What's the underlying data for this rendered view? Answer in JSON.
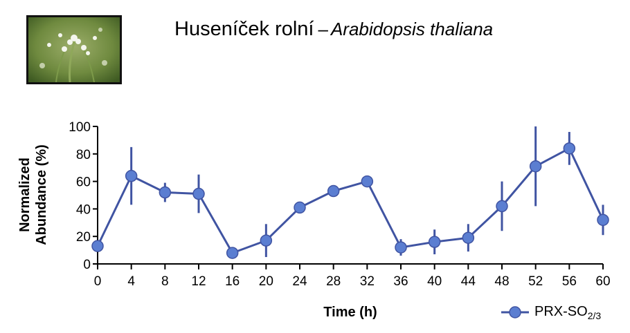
{
  "header": {
    "title_czech": "Huseníček rolní",
    "title_separator": "–",
    "title_latin": "Arabidopsis thaliana"
  },
  "photo": {
    "icon": "arabidopsis-flower-photo"
  },
  "colors": {
    "series": "#4054a2",
    "marker": "#5b7ed1"
  },
  "chart_data": {
    "type": "line",
    "xlabel": "Time (h)",
    "ylabel_line1": "Normalized",
    "ylabel_line2": "Abundance (%)",
    "xlim": [
      0,
      60
    ],
    "ylim": [
      0,
      100
    ],
    "xticks": [
      0,
      4,
      8,
      12,
      16,
      20,
      24,
      28,
      32,
      36,
      40,
      44,
      48,
      52,
      56,
      60
    ],
    "yticks": [
      0,
      20,
      40,
      60,
      80,
      100
    ],
    "grid": false,
    "legend_position": "bottom-right",
    "series": [
      {
        "name_main": "PRX-SO",
        "name_sub": "2/3",
        "x": [
          0,
          4,
          8,
          12,
          16,
          20,
          24,
          28,
          32,
          36,
          40,
          44,
          48,
          52,
          56,
          60
        ],
        "y": [
          13,
          64,
          52,
          51,
          8,
          17,
          41,
          53,
          60,
          12,
          16,
          19,
          42,
          71,
          84,
          32
        ],
        "error": [
          0,
          21,
          7,
          14,
          0,
          12,
          0,
          0,
          0,
          6,
          9,
          10,
          18,
          29,
          12,
          11
        ]
      }
    ]
  }
}
